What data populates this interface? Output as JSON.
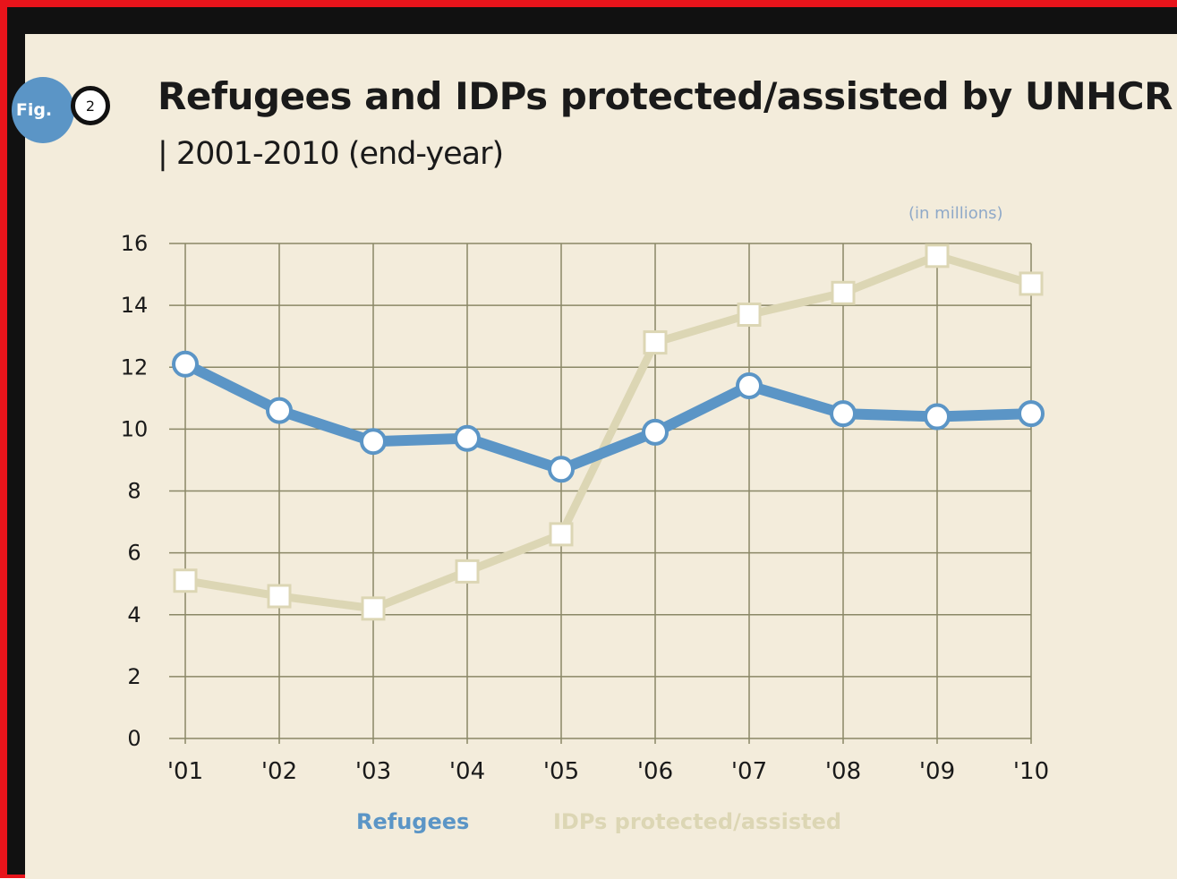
{
  "figure": {
    "badge_label": "Fig.",
    "number": "2"
  },
  "chart_data": {
    "type": "line",
    "title": "Refugees and IDPs protected/assisted by UNHCR",
    "subtitle": "| 2001-2010 (end-year)",
    "units_note": "(in millions)",
    "categories": [
      "'01",
      "'02",
      "'03",
      "'04",
      "'05",
      "'06",
      "'07",
      "'08",
      "'09",
      "'10"
    ],
    "series": [
      {
        "name": "Refugees",
        "color": "#5b95c6",
        "marker": "circle",
        "values": [
          12.1,
          10.6,
          9.6,
          9.7,
          8.7,
          9.9,
          11.4,
          10.5,
          10.4,
          10.5
        ]
      },
      {
        "name": "IDPs protected/assisted",
        "color": "#dcd6b4",
        "marker": "square",
        "values": [
          5.1,
          4.6,
          4.2,
          5.4,
          6.6,
          12.8,
          13.7,
          14.4,
          15.6,
          14.7
        ]
      }
    ],
    "yticks": [
      0,
      2,
      4,
      6,
      8,
      10,
      12,
      14,
      16
    ],
    "ylim": [
      0,
      16
    ],
    "grid": true,
    "legend_position": "bottom"
  }
}
